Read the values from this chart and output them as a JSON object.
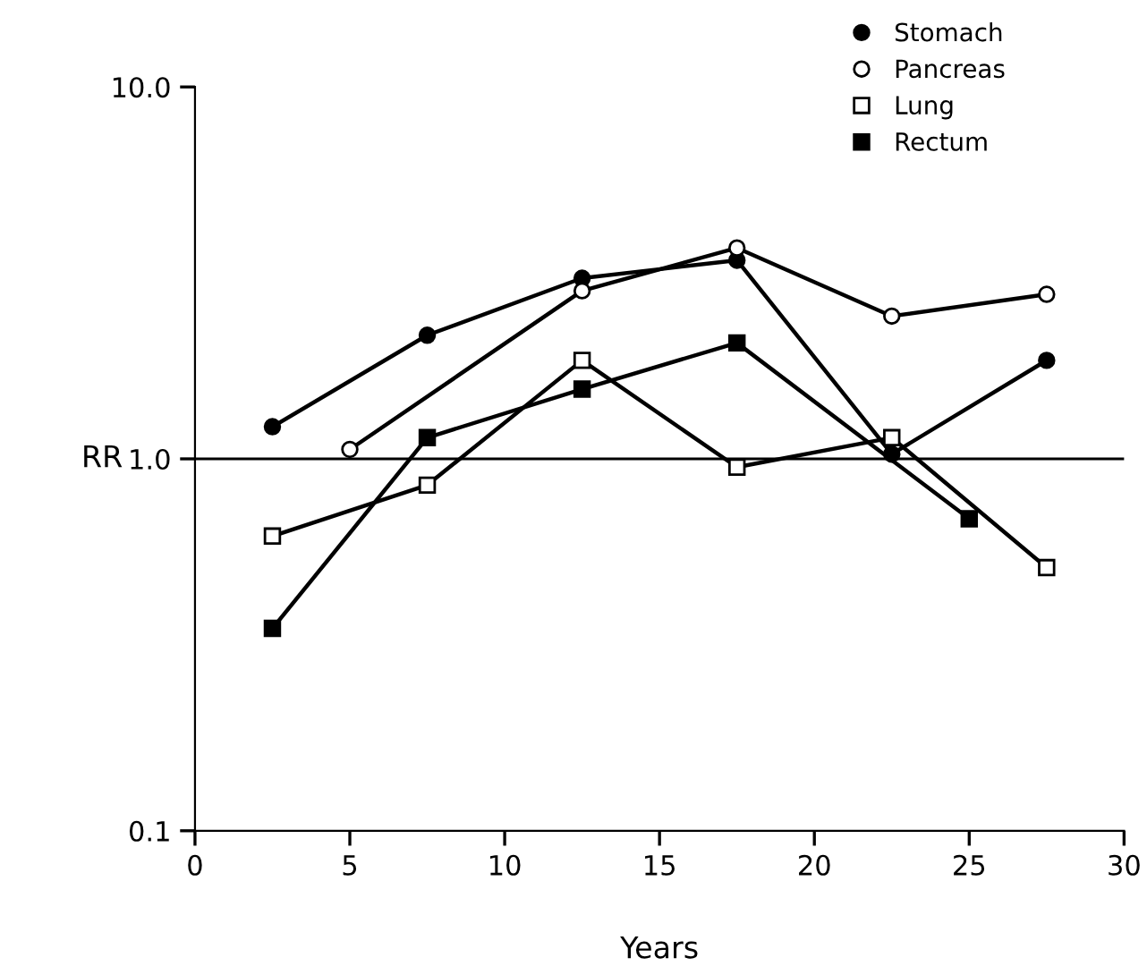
{
  "chart_data": {
    "type": "line",
    "xlabel": "Years",
    "ylabel": "RR",
    "log": "y",
    "xlim": [
      0,
      30
    ],
    "xticks": [
      0,
      5,
      10,
      15,
      20,
      25,
      30
    ],
    "ylim": [
      0.1,
      10
    ],
    "yticks": [
      {
        "value": 0.1,
        "label": "0.1"
      },
      {
        "value": 1,
        "label": "1.0"
      },
      {
        "value": 10,
        "label": "10.0"
      }
    ],
    "grid": false,
    "legend": "top right",
    "ref_lines": [
      {
        "axis": "y",
        "value": 1,
        "label": null,
        "color": "#000000",
        "line_style": "solid"
      }
    ],
    "series": [
      {
        "name": "Stomach",
        "color": "#000000",
        "marker": "circle",
        "x": [
          2.5,
          7.5,
          12.5,
          17.5,
          22.5,
          27.5
        ],
        "values": [
          1.22,
          2.15,
          3.06,
          3.42,
          1.03,
          1.84
        ]
      },
      {
        "name": "Pancreas",
        "color": "#000000",
        "marker": "circle",
        "x": [
          5,
          12.5,
          17.5,
          22.5,
          27.5
        ],
        "values": [
          1.06,
          2.83,
          3.69,
          2.42,
          2.77
        ]
      },
      {
        "name": "Lung",
        "color": "#000000",
        "marker": "square",
        "x": [
          2.5,
          7.5,
          12.5,
          17.5,
          22.5,
          27.5
        ],
        "values": [
          0.62,
          0.85,
          1.84,
          0.95,
          1.14,
          0.51
        ]
      },
      {
        "name": "Rectum",
        "color": "#000000",
        "marker": "square",
        "x": [
          2.5,
          7.5,
          12.5,
          17.5,
          25
        ],
        "values": [
          0.35,
          1.14,
          1.54,
          2.05,
          0.69
        ]
      }
    ]
  }
}
